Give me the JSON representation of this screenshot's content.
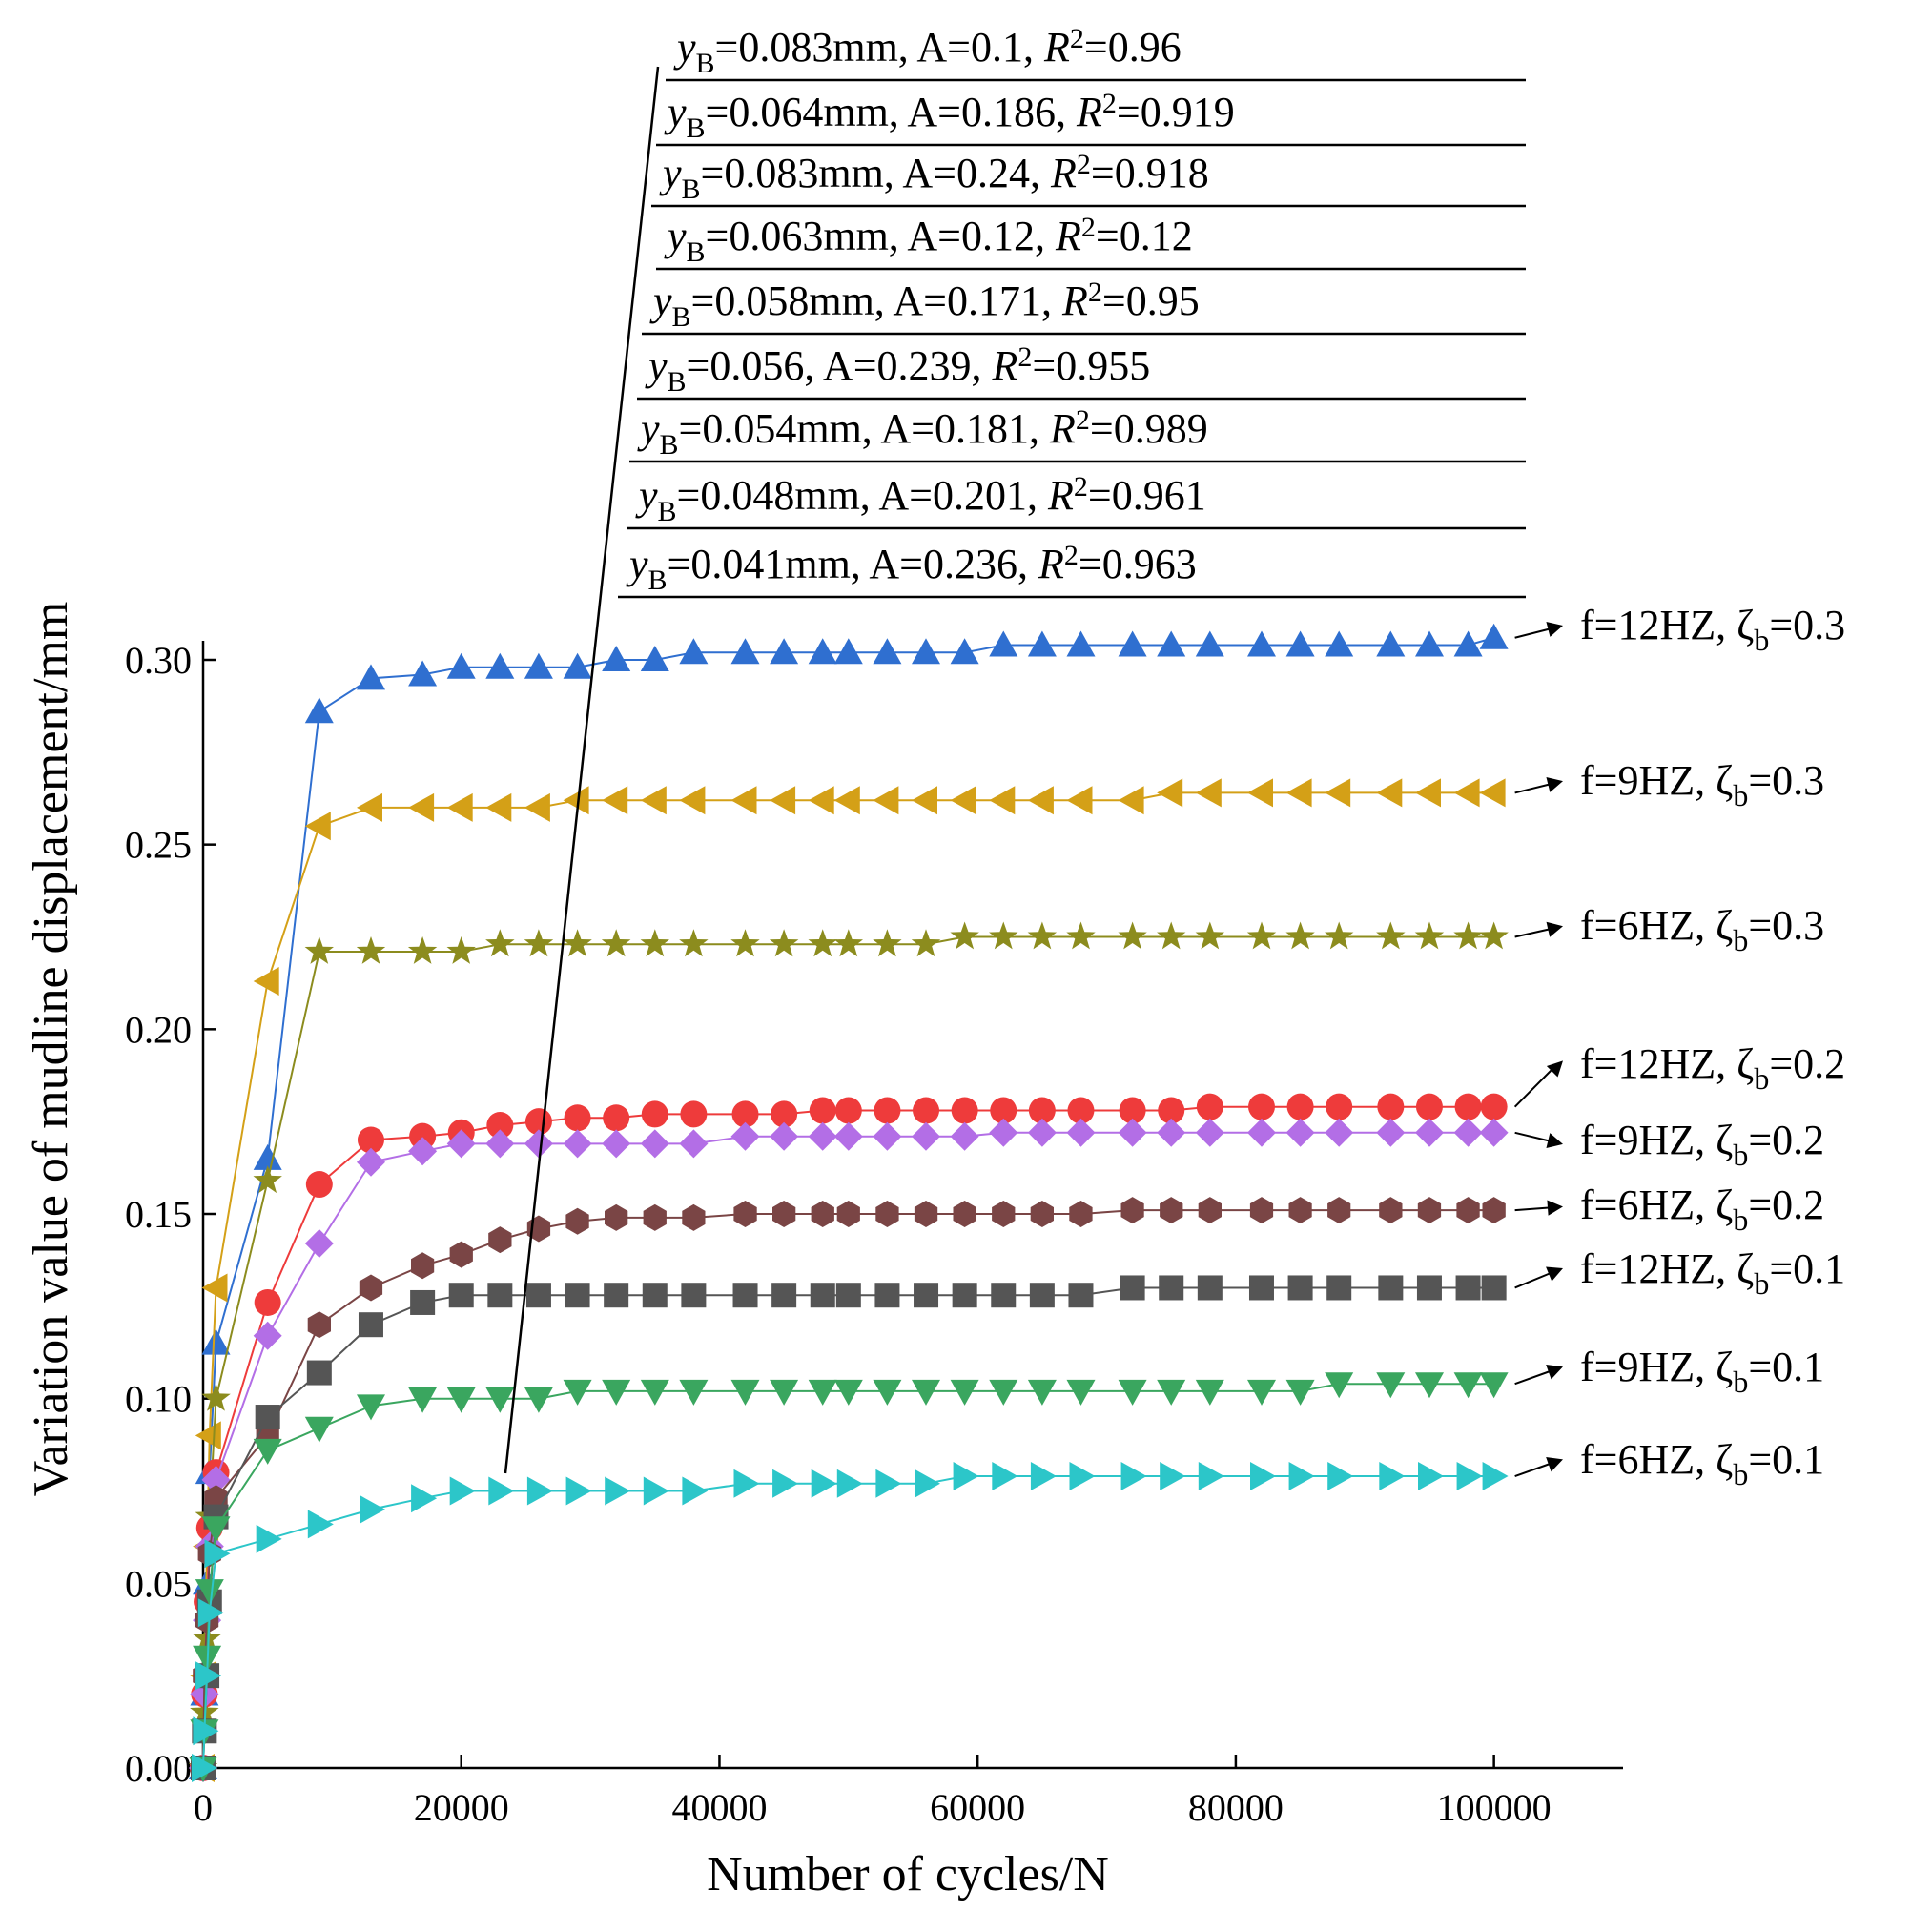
{
  "chart_data": {
    "type": "line",
    "xlabel": "Number of cycles/N",
    "ylabel": "Variation value of mudline displacement/mm",
    "xlim": [
      0,
      110000
    ],
    "ylim": [
      0,
      0.3
    ],
    "xticks": [
      0,
      20000,
      40000,
      60000,
      80000,
      100000
    ],
    "xtick_labels": [
      "0",
      "20000",
      "40000",
      "60000",
      "80000",
      "100000"
    ],
    "yticks": [
      0,
      0.05,
      0.1,
      0.15,
      0.2,
      0.25,
      0.3
    ],
    "ytick_labels": [
      "0.00",
      "0.05",
      "0.10",
      "0.15",
      "0.20",
      "0.25",
      "0.30"
    ],
    "x": [
      0,
      100,
      300,
      500,
      1000,
      5000,
      9000,
      13000,
      17000,
      20000,
      23000,
      26000,
      29000,
      32000,
      35000,
      38000,
      42000,
      45000,
      48000,
      50000,
      53000,
      56000,
      59000,
      62000,
      65000,
      68000,
      72000,
      75000,
      78000,
      82000,
      85000,
      88000,
      92000,
      95000,
      98000,
      100000
    ],
    "series": [
      {
        "name": "f=12HZ, ζb=0.3",
        "label_main": "f=12HZ, ζ",
        "label_sub": "b",
        "label_tail": "=0.3",
        "color": "#2f6fd0",
        "marker": "triangle-up",
        "values": [
          0.0,
          0.02,
          0.05,
          0.08,
          0.115,
          0.165,
          0.286,
          0.295,
          0.296,
          0.298,
          0.298,
          0.298,
          0.298,
          0.3,
          0.3,
          0.302,
          0.302,
          0.302,
          0.302,
          0.302,
          0.302,
          0.302,
          0.302,
          0.304,
          0.304,
          0.304,
          0.304,
          0.304,
          0.304,
          0.304,
          0.304,
          0.304,
          0.304,
          0.304,
          0.304,
          0.306
        ]
      },
      {
        "name": "f=9HZ, ζb=0.3",
        "label_main": "f=9HZ, ζ",
        "label_sub": "b",
        "label_tail": "=0.3",
        "color": "#d4a017",
        "marker": "triangle-left",
        "values": [
          0.0,
          0.025,
          0.06,
          0.09,
          0.13,
          0.213,
          0.255,
          0.26,
          0.26,
          0.26,
          0.26,
          0.26,
          0.262,
          0.262,
          0.262,
          0.262,
          0.262,
          0.262,
          0.262,
          0.262,
          0.262,
          0.262,
          0.262,
          0.262,
          0.262,
          0.262,
          0.262,
          0.264,
          0.264,
          0.264,
          0.264,
          0.264,
          0.264,
          0.264,
          0.264,
          0.264
        ]
      },
      {
        "name": "f=6HZ, ζb=0.3",
        "label_main": "f=6HZ, ζ",
        "label_sub": "b",
        "label_tail": "=0.3",
        "color": "#8c8c1e",
        "marker": "star",
        "values": [
          0.0,
          0.015,
          0.035,
          0.068,
          0.1,
          0.159,
          0.221,
          0.221,
          0.221,
          0.221,
          0.223,
          0.223,
          0.223,
          0.223,
          0.223,
          0.223,
          0.223,
          0.223,
          0.223,
          0.223,
          0.223,
          0.223,
          0.225,
          0.225,
          0.225,
          0.225,
          0.225,
          0.225,
          0.225,
          0.225,
          0.225,
          0.225,
          0.225,
          0.225,
          0.225,
          0.225
        ]
      },
      {
        "name": "f=12HZ, ζb=0.2",
        "label_main": "f=12HZ, ζ",
        "label_sub": "b",
        "label_tail": "=0.2",
        "color": "#ee3b3b",
        "marker": "circle",
        "values": [
          0.0,
          0.02,
          0.045,
          0.065,
          0.08,
          0.126,
          0.158,
          0.17,
          0.171,
          0.172,
          0.174,
          0.175,
          0.176,
          0.176,
          0.177,
          0.177,
          0.177,
          0.177,
          0.178,
          0.178,
          0.178,
          0.178,
          0.178,
          0.178,
          0.178,
          0.178,
          0.178,
          0.178,
          0.179,
          0.179,
          0.179,
          0.179,
          0.179,
          0.179,
          0.179,
          0.179
        ]
      },
      {
        "name": "f=9HZ, ζb=0.2",
        "label_main": "f=9HZ, ζ",
        "label_sub": "b",
        "label_tail": "=0.2",
        "color": "#b36ee6",
        "marker": "diamond",
        "values": [
          0.0,
          0.02,
          0.04,
          0.06,
          0.078,
          0.117,
          0.142,
          0.164,
          0.167,
          0.169,
          0.169,
          0.169,
          0.169,
          0.169,
          0.169,
          0.169,
          0.171,
          0.171,
          0.171,
          0.171,
          0.171,
          0.171,
          0.171,
          0.172,
          0.172,
          0.172,
          0.172,
          0.172,
          0.172,
          0.172,
          0.172,
          0.172,
          0.172,
          0.172,
          0.172,
          0.172
        ]
      },
      {
        "name": "f=6HZ, ζb=0.2",
        "label_main": "f=6HZ, ζ",
        "label_sub": "b",
        "label_tail": "=0.2",
        "color": "#7a4545",
        "marker": "hexagon",
        "values": [
          0.0,
          0.025,
          0.04,
          0.058,
          0.073,
          0.09,
          0.12,
          0.13,
          0.136,
          0.139,
          0.143,
          0.146,
          0.148,
          0.149,
          0.149,
          0.149,
          0.15,
          0.15,
          0.15,
          0.15,
          0.15,
          0.15,
          0.15,
          0.15,
          0.15,
          0.15,
          0.151,
          0.151,
          0.151,
          0.151,
          0.151,
          0.151,
          0.151,
          0.151,
          0.151,
          0.151
        ]
      },
      {
        "name": "f=12HZ, ζb=0.1",
        "label_main": "f=12HZ, ζ",
        "label_sub": "b",
        "label_tail": "=0.1",
        "color": "#555555",
        "marker": "square",
        "values": [
          0.0,
          0.01,
          0.025,
          0.045,
          0.068,
          0.095,
          0.107,
          0.12,
          0.126,
          0.128,
          0.128,
          0.128,
          0.128,
          0.128,
          0.128,
          0.128,
          0.128,
          0.128,
          0.128,
          0.128,
          0.128,
          0.128,
          0.128,
          0.128,
          0.128,
          0.128,
          0.13,
          0.13,
          0.13,
          0.13,
          0.13,
          0.13,
          0.13,
          0.13,
          0.13,
          0.13
        ]
      },
      {
        "name": "f=9HZ, ζb=0.1",
        "label_main": "f=9HZ, ζ",
        "label_sub": "b",
        "label_tail": "=0.1",
        "color": "#3aa65f",
        "marker": "triangle-down",
        "values": [
          0.0,
          0.01,
          0.03,
          0.048,
          0.065,
          0.086,
          0.092,
          0.098,
          0.1,
          0.1,
          0.1,
          0.1,
          0.102,
          0.102,
          0.102,
          0.102,
          0.102,
          0.102,
          0.102,
          0.102,
          0.102,
          0.102,
          0.102,
          0.102,
          0.102,
          0.102,
          0.102,
          0.102,
          0.102,
          0.102,
          0.102,
          0.104,
          0.104,
          0.104,
          0.104,
          0.104
        ]
      },
      {
        "name": "f=6HZ, ζb=0.1",
        "label_main": "f=6HZ, ζ",
        "label_sub": "b",
        "label_tail": "=0.1",
        "color": "#2cc6c9",
        "marker": "triangle-right",
        "values": [
          0.0,
          0.01,
          0.025,
          0.042,
          0.058,
          0.062,
          0.066,
          0.07,
          0.073,
          0.075,
          0.075,
          0.075,
          0.075,
          0.075,
          0.075,
          0.075,
          0.077,
          0.077,
          0.077,
          0.077,
          0.077,
          0.077,
          0.079,
          0.079,
          0.079,
          0.079,
          0.079,
          0.079,
          0.079,
          0.079,
          0.079,
          0.079,
          0.079,
          0.079,
          0.079,
          0.079
        ]
      }
    ],
    "annotations": [
      {
        "yb": "=0.083mm, A=0.1, ",
        "r2": "=0.96"
      },
      {
        "yb": "=0.064mm, A=0.186, ",
        "r2": "=0.919"
      },
      {
        "yb": "=0.083mm, A=0.24, ",
        "r2": "=0.918"
      },
      {
        "yb": "=0.063mm, A=0.12, ",
        "r2": "=0.12"
      },
      {
        "yb": "=0.058mm, A=0.171, ",
        "r2": "=0.95"
      },
      {
        "yb": "=0.056, A=0.239, ",
        "r2": "=0.955"
      },
      {
        "yb": "=0.054mm, A=0.181, ",
        "r2": "=0.989"
      },
      {
        "yb": "=0.048mm, A=0.201, ",
        "r2": "=0.961"
      },
      {
        "yb": "=0.041mm, A=0.236, ",
        "r2": "=0.963"
      }
    ],
    "annotation_symbols": {
      "y": "y",
      "y_sub": "B",
      "r": "R",
      "r_sup": "2"
    }
  }
}
